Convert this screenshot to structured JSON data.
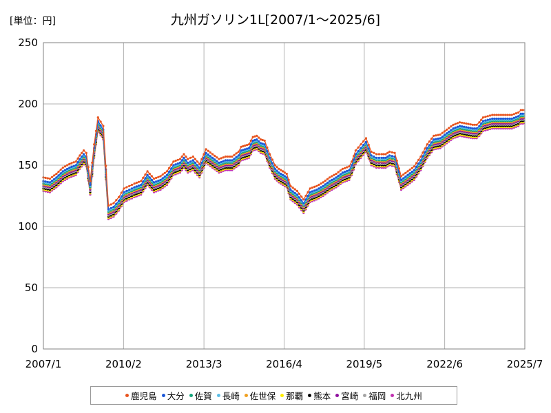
{
  "chart_data": {
    "type": "line",
    "title": "九州ガソリン1L[2007/1〜2025/6]",
    "unit_label": "[単位：円]",
    "ylim": [
      0,
      250
    ],
    "y_ticks": [
      0,
      50,
      100,
      150,
      200,
      250
    ],
    "x_range": [
      2007.0,
      2025.5
    ],
    "x_ticks": [
      {
        "value": 2007.0,
        "label": "2007/1"
      },
      {
        "value": 2010.08,
        "label": "2010/2"
      },
      {
        "value": 2013.17,
        "label": "2013/3"
      },
      {
        "value": 2016.25,
        "label": "2016/4"
      },
      {
        "value": 2019.33,
        "label": "2019/5"
      },
      {
        "value": 2022.42,
        "label": "2022/6"
      },
      {
        "value": 2025.5,
        "label": "2025/7"
      }
    ],
    "grid": true,
    "legend_position": "bottom",
    "reference_series": {
      "x": [
        2007.0,
        2007.25,
        2007.5,
        2007.75,
        2008.0,
        2008.25,
        2008.4,
        2008.55,
        2008.65,
        2008.8,
        2008.95,
        2009.1,
        2009.3,
        2009.5,
        2009.7,
        2009.9,
        2010.1,
        2010.3,
        2010.5,
        2010.75,
        2011.0,
        2011.25,
        2011.5,
        2011.75,
        2012.0,
        2012.25,
        2012.4,
        2012.55,
        2012.75,
        2013.0,
        2013.25,
        2013.5,
        2013.75,
        2014.0,
        2014.25,
        2014.5,
        2014.6,
        2014.75,
        2014.9,
        2015.05,
        2015.2,
        2015.35,
        2015.5,
        2015.7,
        2015.9,
        2016.05,
        2016.2,
        2016.35,
        2016.5,
        2016.75,
        2017.0,
        2017.25,
        2017.5,
        2017.75,
        2018.0,
        2018.25,
        2018.5,
        2018.75,
        2018.85,
        2019.0,
        2019.2,
        2019.4,
        2019.6,
        2019.8,
        2020.0,
        2020.15,
        2020.3,
        2020.5,
        2020.75,
        2021.0,
        2021.25,
        2021.5,
        2021.75,
        2022.0,
        2022.25,
        2022.5,
        2022.75,
        2023.0,
        2023.25,
        2023.5,
        2023.65,
        2023.75,
        2023.9,
        2024.25,
        2024.5,
        2024.75,
        2025.0,
        2025.25,
        2025.35,
        2025.5
      ],
      "y": [
        133,
        132,
        136,
        141,
        144,
        146,
        151,
        155,
        153,
        130,
        160,
        182,
        175,
        110,
        112,
        117,
        124,
        126,
        128,
        130,
        138,
        132,
        134,
        138,
        146,
        148,
        152,
        148,
        150,
        144,
        156,
        152,
        148,
        150,
        150,
        154,
        158,
        159,
        160,
        166,
        167,
        164,
        163,
        152,
        143,
        140,
        138,
        136,
        126,
        122,
        115,
        124,
        126,
        129,
        133,
        136,
        140,
        142,
        146,
        155,
        160,
        165,
        154,
        152,
        152,
        152,
        154,
        153,
        134,
        138,
        142,
        150,
        160,
        167,
        168,
        172,
        176,
        178,
        177,
        176,
        176,
        178,
        182,
        184,
        184,
        184,
        184,
        186,
        188,
        188
      ]
    },
    "series": [
      {
        "name": "鹿児島",
        "color": "#e8541e",
        "offset": 7
      },
      {
        "name": "大分",
        "color": "#1c58d8",
        "offset": 4
      },
      {
        "name": "佐賀",
        "color": "#13a37a",
        "offset": 2
      },
      {
        "name": "長崎",
        "color": "#5cbde6",
        "offset": 3
      },
      {
        "name": "佐世保",
        "color": "#f0a020",
        "offset": 1
      },
      {
        "name": "那覇",
        "color": "#ffee00",
        "offset": -3
      },
      {
        "name": "熊本",
        "color": "#000000",
        "offset": -2
      },
      {
        "name": "宮崎",
        "color": "#8e0f9e",
        "offset": 0
      },
      {
        "name": "福岡",
        "color": "#a5a5a5",
        "offset": -1
      },
      {
        "name": "北九州",
        "color": "#c030b0",
        "offset": -4
      }
    ]
  }
}
